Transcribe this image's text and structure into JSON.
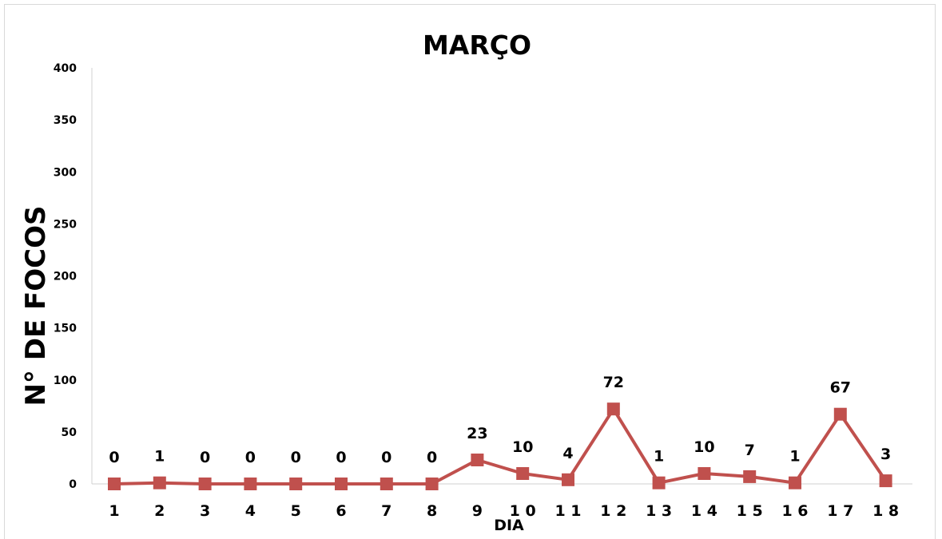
{
  "chart_data": {
    "type": "line",
    "title": "MARÇO",
    "xlabel": "DIA",
    "ylabel": "N° DE FOCOS",
    "ylim": [
      0,
      400
    ],
    "yticks": [
      "0",
      "50",
      "100",
      "150",
      "200",
      "250",
      "300",
      "350",
      "400"
    ],
    "categories": [
      "1",
      "2",
      "3",
      "4",
      "5",
      "6",
      "7",
      "8",
      "9",
      "10",
      "11",
      "12",
      "13",
      "14",
      "15",
      "16",
      "17",
      "18"
    ],
    "x_tick_labels": [
      "1",
      "2",
      "3",
      "4",
      "5",
      "6",
      "7",
      "8",
      "9",
      "1 0",
      "1 1",
      "1 2",
      "1 3",
      "1 4",
      "1 5",
      "1 6",
      "1 7",
      "1 8"
    ],
    "series": [
      {
        "values": [
          0,
          1,
          0,
          0,
          0,
          0,
          0,
          0,
          23,
          10,
          4,
          72,
          1,
          10,
          7,
          1,
          67,
          3
        ],
        "color": "#c0504d",
        "marker": "square",
        "data_labels": true
      }
    ],
    "grid": false,
    "legend": "none"
  }
}
